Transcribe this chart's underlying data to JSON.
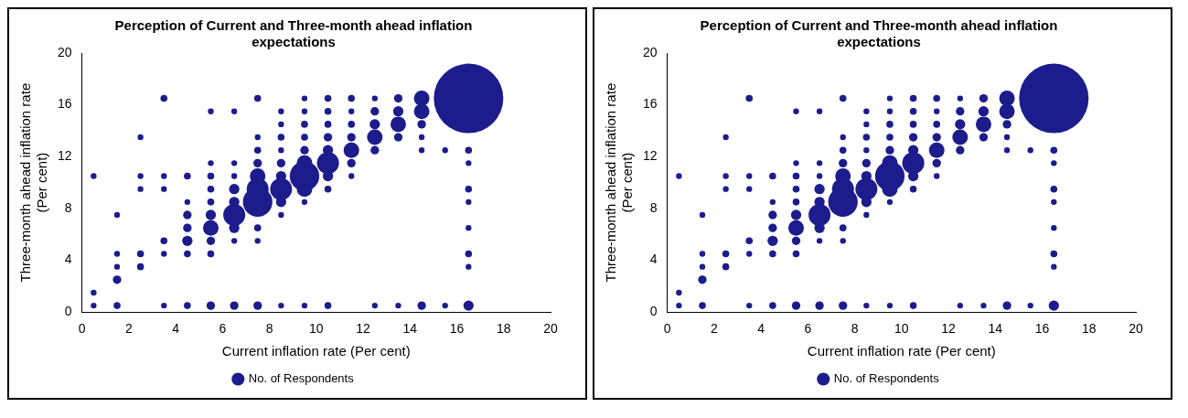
{
  "chart_data": [
    {
      "type": "bubble",
      "title": "Perception of Current and Three-month ahead inflation expectations",
      "xlabel": "Current inflation rate (Per cent)",
      "ylabel": "Three-month ahead inflation rate (Per cent)",
      "xlim": [
        0,
        20
      ],
      "xticks": [
        0,
        2,
        4,
        6,
        8,
        10,
        12,
        14,
        16,
        18,
        20
      ],
      "ylim": [
        0,
        20
      ],
      "yticks": [
        0,
        4,
        8,
        12,
        16,
        20
      ],
      "legend": "bottom",
      "series": [
        {
          "name": "No. of Respondents",
          "color": "#1c1c8c",
          "x": [
            0.5,
            0.5,
            0.5,
            1.5,
            1.5,
            1.5,
            1.5,
            1.5,
            2.5,
            2.5,
            2.5,
            2.5,
            2.5,
            3.5,
            3.5,
            3.5,
            3.5,
            3.5,
            3.5,
            4.5,
            4.5,
            4.5,
            4.5,
            4.5,
            4.5,
            4.5,
            5.5,
            5.5,
            5.5,
            5.5,
            5.5,
            5.5,
            5.5,
            5.5,
            5.5,
            5.5,
            6.5,
            6.5,
            6.5,
            6.5,
            6.5,
            6.5,
            6.5,
            6.5,
            6.5,
            7.5,
            7.5,
            7.5,
            7.5,
            7.5,
            7.5,
            7.5,
            7.5,
            7.5,
            7.5,
            8.5,
            8.5,
            8.5,
            8.5,
            8.5,
            8.5,
            8.5,
            8.5,
            8.5,
            8.5,
            9.5,
            9.5,
            9.5,
            9.5,
            9.5,
            9.5,
            9.5,
            9.5,
            9.5,
            9.5,
            10.5,
            10.5,
            10.5,
            10.5,
            10.5,
            10.5,
            10.5,
            10.5,
            10.5,
            11.5,
            11.5,
            11.5,
            11.5,
            11.5,
            11.5,
            11.5,
            12.5,
            12.5,
            12.5,
            12.5,
            12.5,
            12.5,
            13.5,
            13.5,
            13.5,
            13.5,
            13.5,
            14.5,
            14.5,
            14.5,
            14.5,
            14.5,
            14.5,
            15.5,
            15.5,
            16.5,
            16.5,
            16.5,
            16.5,
            16.5,
            16.5,
            16.5,
            16.5,
            16.5
          ],
          "values": [
            10.5,
            1.5,
            0.5,
            7.5,
            4.5,
            3.5,
            2.5,
            0.5,
            13.5,
            10.5,
            9.5,
            4.5,
            3.5,
            16.5,
            10.5,
            9.5,
            5.5,
            4.5,
            0.5,
            10.5,
            8.5,
            7.5,
            6.5,
            5.5,
            4.5,
            0.5,
            15.5,
            11.5,
            10.5,
            9.5,
            8.5,
            7.5,
            6.5,
            5.5,
            4.5,
            0.5,
            15.5,
            11.5,
            10.5,
            9.5,
            8.5,
            7.5,
            6.5,
            5.5,
            0.5,
            16.5,
            13.5,
            12.5,
            11.5,
            10.5,
            9.5,
            8.5,
            6.5,
            5.5,
            0.5,
            15.5,
            14.5,
            13.5,
            12.5,
            11.5,
            10.5,
            9.5,
            8.5,
            7.5,
            0.5,
            16.5,
            15.5,
            14.5,
            13.5,
            12.5,
            11.5,
            10.5,
            9.5,
            8.5,
            0.5,
            16.5,
            15.5,
            14.5,
            13.5,
            12.5,
            11.5,
            10.5,
            9.5,
            0.5,
            16.5,
            15.5,
            14.5,
            13.5,
            12.5,
            11.5,
            10.5,
            16.5,
            15.5,
            14.5,
            13.5,
            12.5,
            0.5,
            16.5,
            15.5,
            14.5,
            13.5,
            0.5,
            16.5,
            15.5,
            14.5,
            13.5,
            12.5,
            0.5,
            12.5,
            0.5,
            16.5,
            12.5,
            11.5,
            9.5,
            8.5,
            6.5,
            4.5,
            3.5,
            0.5
          ],
          "sizes": [
            0.007,
            0.007,
            0.007,
            0.007,
            0.007,
            0.007,
            0.015,
            0.01,
            0.007,
            0.007,
            0.007,
            0.01,
            0.01,
            0.01,
            0.007,
            0.007,
            0.01,
            0.007,
            0.007,
            0.01,
            0.007,
            0.015,
            0.015,
            0.022,
            0.01,
            0.01,
            0.007,
            0.007,
            0.01,
            0.01,
            0.01,
            0.022,
            0.05,
            0.015,
            0.01,
            0.015,
            0.007,
            0.007,
            0.007,
            0.022,
            0.022,
            0.1,
            0.022,
            0.007,
            0.015,
            0.01,
            0.007,
            0.01,
            0.015,
            0.05,
            0.1,
            0.18,
            0.01,
            0.007,
            0.015,
            0.007,
            0.007,
            0.01,
            0.007,
            0.015,
            0.022,
            0.1,
            0.022,
            0.007,
            0.007,
            0.007,
            0.007,
            0.01,
            0.01,
            0.015,
            0.05,
            0.18,
            0.05,
            0.007,
            0.007,
            0.01,
            0.01,
            0.01,
            0.015,
            0.022,
            0.1,
            0.022,
            0.01,
            0.01,
            0.01,
            0.007,
            0.01,
            0.015,
            0.05,
            0.015,
            0.007,
            0.007,
            0.015,
            0.022,
            0.05,
            0.015,
            0.007,
            0.015,
            0.022,
            0.05,
            0.015,
            0.007,
            0.05,
            0.05,
            0.015,
            0.007,
            0.007,
            0.015,
            0.007,
            0.007,
            1,
            0.01,
            0.007,
            0.01,
            0.007,
            0.007,
            0.01,
            0.007,
            0.022
          ]
        }
      ]
    },
    {
      "type": "bubble",
      "title": "Perception of Current and Three-month ahead inflation expectations",
      "xlabel": "Current inflation rate (Per cent)",
      "ylabel": "Three-month ahead inflation rate (Per cent)",
      "xlim": [
        0,
        20
      ],
      "xticks": [
        0,
        2,
        4,
        6,
        8,
        10,
        12,
        14,
        16,
        18,
        20
      ],
      "ylim": [
        0,
        20
      ],
      "yticks": [
        0,
        4,
        8,
        12,
        16,
        20
      ],
      "legend": "bottom",
      "series": [
        {
          "name": "No. of Respondents",
          "color": "#1c1c8c",
          "x": [
            0.5,
            0.5,
            0.5,
            1.5,
            1.5,
            1.5,
            1.5,
            1.5,
            2.5,
            2.5,
            2.5,
            2.5,
            2.5,
            3.5,
            3.5,
            3.5,
            3.5,
            3.5,
            3.5,
            4.5,
            4.5,
            4.5,
            4.5,
            4.5,
            4.5,
            4.5,
            5.5,
            5.5,
            5.5,
            5.5,
            5.5,
            5.5,
            5.5,
            5.5,
            5.5,
            5.5,
            6.5,
            6.5,
            6.5,
            6.5,
            6.5,
            6.5,
            6.5,
            6.5,
            6.5,
            7.5,
            7.5,
            7.5,
            7.5,
            7.5,
            7.5,
            7.5,
            7.5,
            7.5,
            7.5,
            8.5,
            8.5,
            8.5,
            8.5,
            8.5,
            8.5,
            8.5,
            8.5,
            8.5,
            8.5,
            9.5,
            9.5,
            9.5,
            9.5,
            9.5,
            9.5,
            9.5,
            9.5,
            9.5,
            9.5,
            10.5,
            10.5,
            10.5,
            10.5,
            10.5,
            10.5,
            10.5,
            10.5,
            10.5,
            11.5,
            11.5,
            11.5,
            11.5,
            11.5,
            11.5,
            11.5,
            12.5,
            12.5,
            12.5,
            12.5,
            12.5,
            12.5,
            13.5,
            13.5,
            13.5,
            13.5,
            13.5,
            14.5,
            14.5,
            14.5,
            14.5,
            14.5,
            14.5,
            15.5,
            15.5,
            16.5,
            16.5,
            16.5,
            16.5,
            16.5,
            16.5,
            16.5,
            16.5,
            16.5
          ],
          "values": [
            10.5,
            1.5,
            0.5,
            7.5,
            4.5,
            3.5,
            2.5,
            0.5,
            13.5,
            10.5,
            9.5,
            4.5,
            3.5,
            16.5,
            10.5,
            9.5,
            5.5,
            4.5,
            0.5,
            10.5,
            8.5,
            7.5,
            6.5,
            5.5,
            4.5,
            0.5,
            15.5,
            11.5,
            10.5,
            9.5,
            8.5,
            7.5,
            6.5,
            5.5,
            4.5,
            0.5,
            15.5,
            11.5,
            10.5,
            9.5,
            8.5,
            7.5,
            6.5,
            5.5,
            0.5,
            16.5,
            13.5,
            12.5,
            11.5,
            10.5,
            9.5,
            8.5,
            6.5,
            5.5,
            0.5,
            15.5,
            14.5,
            13.5,
            12.5,
            11.5,
            10.5,
            9.5,
            8.5,
            7.5,
            0.5,
            16.5,
            15.5,
            14.5,
            13.5,
            12.5,
            11.5,
            10.5,
            9.5,
            8.5,
            0.5,
            16.5,
            15.5,
            14.5,
            13.5,
            12.5,
            11.5,
            10.5,
            9.5,
            0.5,
            16.5,
            15.5,
            14.5,
            13.5,
            12.5,
            11.5,
            10.5,
            16.5,
            15.5,
            14.5,
            13.5,
            12.5,
            0.5,
            16.5,
            15.5,
            14.5,
            13.5,
            0.5,
            16.5,
            15.5,
            14.5,
            13.5,
            12.5,
            0.5,
            12.5,
            0.5,
            16.5,
            12.5,
            11.5,
            9.5,
            8.5,
            6.5,
            4.5,
            3.5,
            0.5
          ],
          "sizes": [
            0.007,
            0.007,
            0.007,
            0.007,
            0.007,
            0.007,
            0.015,
            0.01,
            0.007,
            0.007,
            0.007,
            0.01,
            0.01,
            0.01,
            0.007,
            0.007,
            0.01,
            0.007,
            0.007,
            0.01,
            0.007,
            0.015,
            0.015,
            0.022,
            0.01,
            0.01,
            0.007,
            0.007,
            0.01,
            0.01,
            0.01,
            0.022,
            0.05,
            0.015,
            0.01,
            0.015,
            0.007,
            0.007,
            0.007,
            0.022,
            0.022,
            0.1,
            0.022,
            0.007,
            0.015,
            0.01,
            0.007,
            0.01,
            0.015,
            0.05,
            0.1,
            0.18,
            0.01,
            0.007,
            0.015,
            0.007,
            0.007,
            0.01,
            0.007,
            0.015,
            0.022,
            0.1,
            0.022,
            0.007,
            0.007,
            0.007,
            0.007,
            0.01,
            0.01,
            0.015,
            0.05,
            0.18,
            0.05,
            0.007,
            0.007,
            0.01,
            0.01,
            0.01,
            0.015,
            0.022,
            0.1,
            0.022,
            0.01,
            0.01,
            0.01,
            0.007,
            0.01,
            0.015,
            0.05,
            0.015,
            0.007,
            0.007,
            0.015,
            0.022,
            0.05,
            0.015,
            0.007,
            0.015,
            0.022,
            0.05,
            0.015,
            0.007,
            0.05,
            0.05,
            0.015,
            0.007,
            0.007,
            0.015,
            0.007,
            0.007,
            1,
            0.01,
            0.007,
            0.01,
            0.007,
            0.007,
            0.01,
            0.007,
            0.022
          ]
        }
      ]
    }
  ]
}
